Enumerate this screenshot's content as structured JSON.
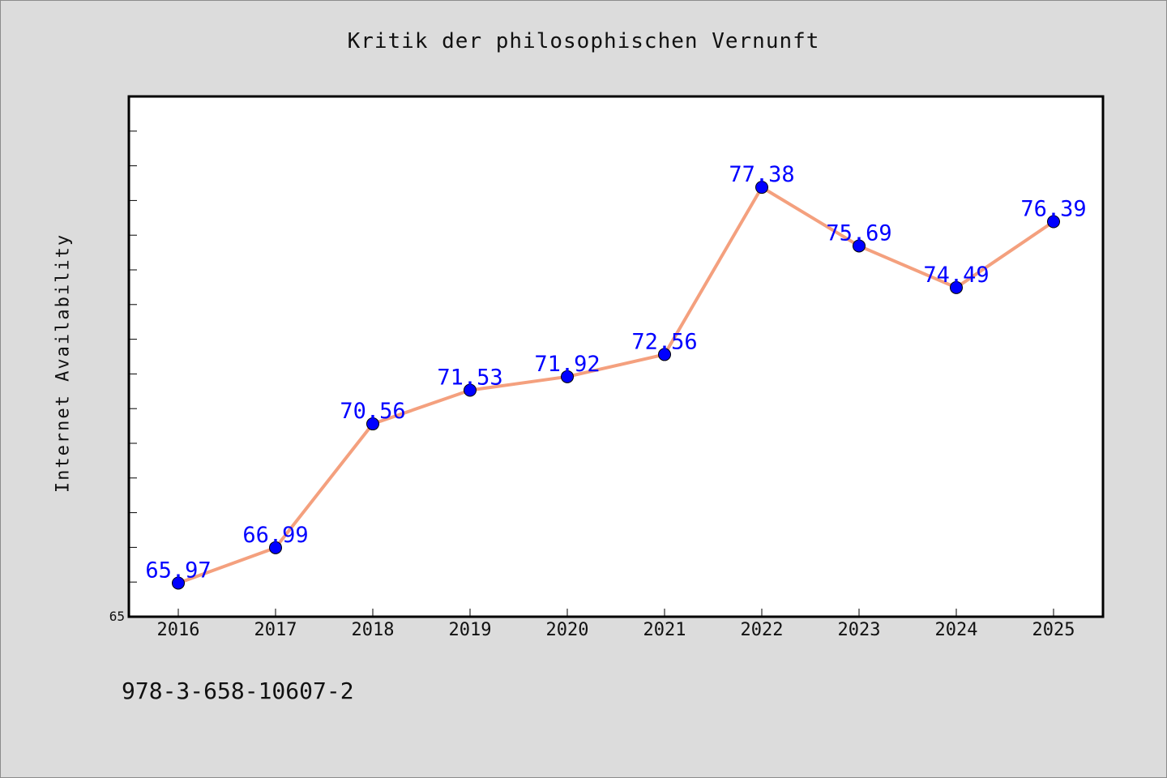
{
  "chart_data": {
    "type": "line",
    "title": "Kritik der philosophischen Vernunft",
    "ylabel": "Internet Availability",
    "xlabel": "",
    "categories": [
      "2016",
      "2017",
      "2018",
      "2019",
      "2020",
      "2021",
      "2022",
      "2023",
      "2024",
      "2025"
    ],
    "series": [
      {
        "values": [
          65.97,
          66.99,
          70.56,
          71.53,
          71.92,
          72.56,
          77.38,
          75.69,
          74.49,
          76.39
        ],
        "data_labels": [
          "65.97",
          "66.99",
          "70.56",
          "71.53",
          "71.92",
          "72.56",
          "77.38",
          "75.69",
          "74.49",
          "76.39"
        ]
      }
    ],
    "ylim": [
      65,
      80
    ],
    "y_tick_labels": [
      "65"
    ],
    "grid": false,
    "legend": "none",
    "colors": {
      "line": "#f4a07e",
      "marker": "#0000ff",
      "data_label": "#0000ff",
      "background": "#dcdcdc",
      "plot_area": "#ffffff"
    }
  },
  "footer": {
    "isbn": "978-3-658-10607-2"
  }
}
